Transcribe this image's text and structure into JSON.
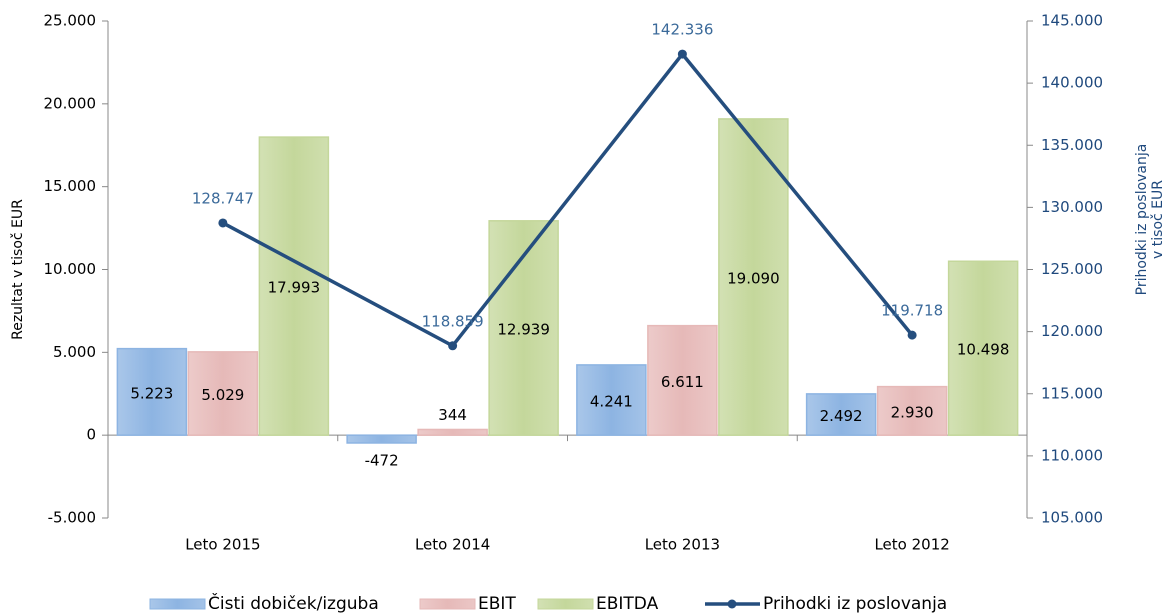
{
  "chart_data": {
    "type": "bar",
    "categories": [
      "Leto 2015",
      "Leto 2014",
      "Leto 2013",
      "Leto 2012"
    ],
    "series": [
      {
        "name": "Čisti dobiček/izguba",
        "color": "#8db4e2",
        "values": [
          5223,
          -472,
          4241,
          2492
        ],
        "value_labels": [
          "5.223",
          "-472",
          "4.241",
          "2.492"
        ]
      },
      {
        "name": "EBIT",
        "color": "#e6b9b8",
        "values": [
          5029,
          344,
          6611,
          2930
        ],
        "value_labels": [
          "5.029",
          "344",
          "6.611",
          "2.930"
        ]
      },
      {
        "name": "EBITDA",
        "color": "#c4d79b",
        "values": [
          17993,
          12939,
          19090,
          10498
        ],
        "value_labels": [
          "17.993",
          "12.939",
          "19.090",
          "10.498"
        ]
      },
      {
        "name": "Prihodki iz poslovanja",
        "color": "#254e7e",
        "type": "line",
        "axis": "y2",
        "values": [
          128747,
          118859,
          142336,
          119718
        ],
        "value_labels": [
          "128.747",
          "118.859",
          "142.336",
          "119.718"
        ]
      }
    ],
    "y_label": "Rezultat v tisoč EUR",
    "y2_label": [
      "Prihodki iz poslovanja",
      "v tisoč EUR"
    ],
    "ylim": [
      -5000,
      25000
    ],
    "yticks": [
      {
        "value": -5000,
        "label": "-5.000"
      },
      0,
      {
        "value": 5000,
        "label": "5.000"
      },
      {
        "value": 10000,
        "label": "10.000"
      },
      {
        "value": 15000,
        "label": "15.000"
      },
      {
        "value": 20000,
        "label": "20.000"
      },
      {
        "value": 25000,
        "label": "25.000"
      }
    ],
    "y2lim": [
      105000,
      145000
    ],
    "y2ticks": [
      {
        "value": 105000,
        "label": "105.000"
      },
      {
        "value": 110000,
        "label": "110.000"
      },
      {
        "value": 115000,
        "label": "115.000"
      },
      {
        "value": 120000,
        "label": "120.000"
      },
      {
        "value": 125000,
        "label": "125.000"
      },
      {
        "value": 130000,
        "label": "130.000"
      },
      {
        "value": 135000,
        "label": "135.000"
      },
      {
        "value": 140000,
        "label": "140.000"
      },
      {
        "value": 145000,
        "label": "145.000"
      }
    ],
    "legend": "bottom"
  }
}
